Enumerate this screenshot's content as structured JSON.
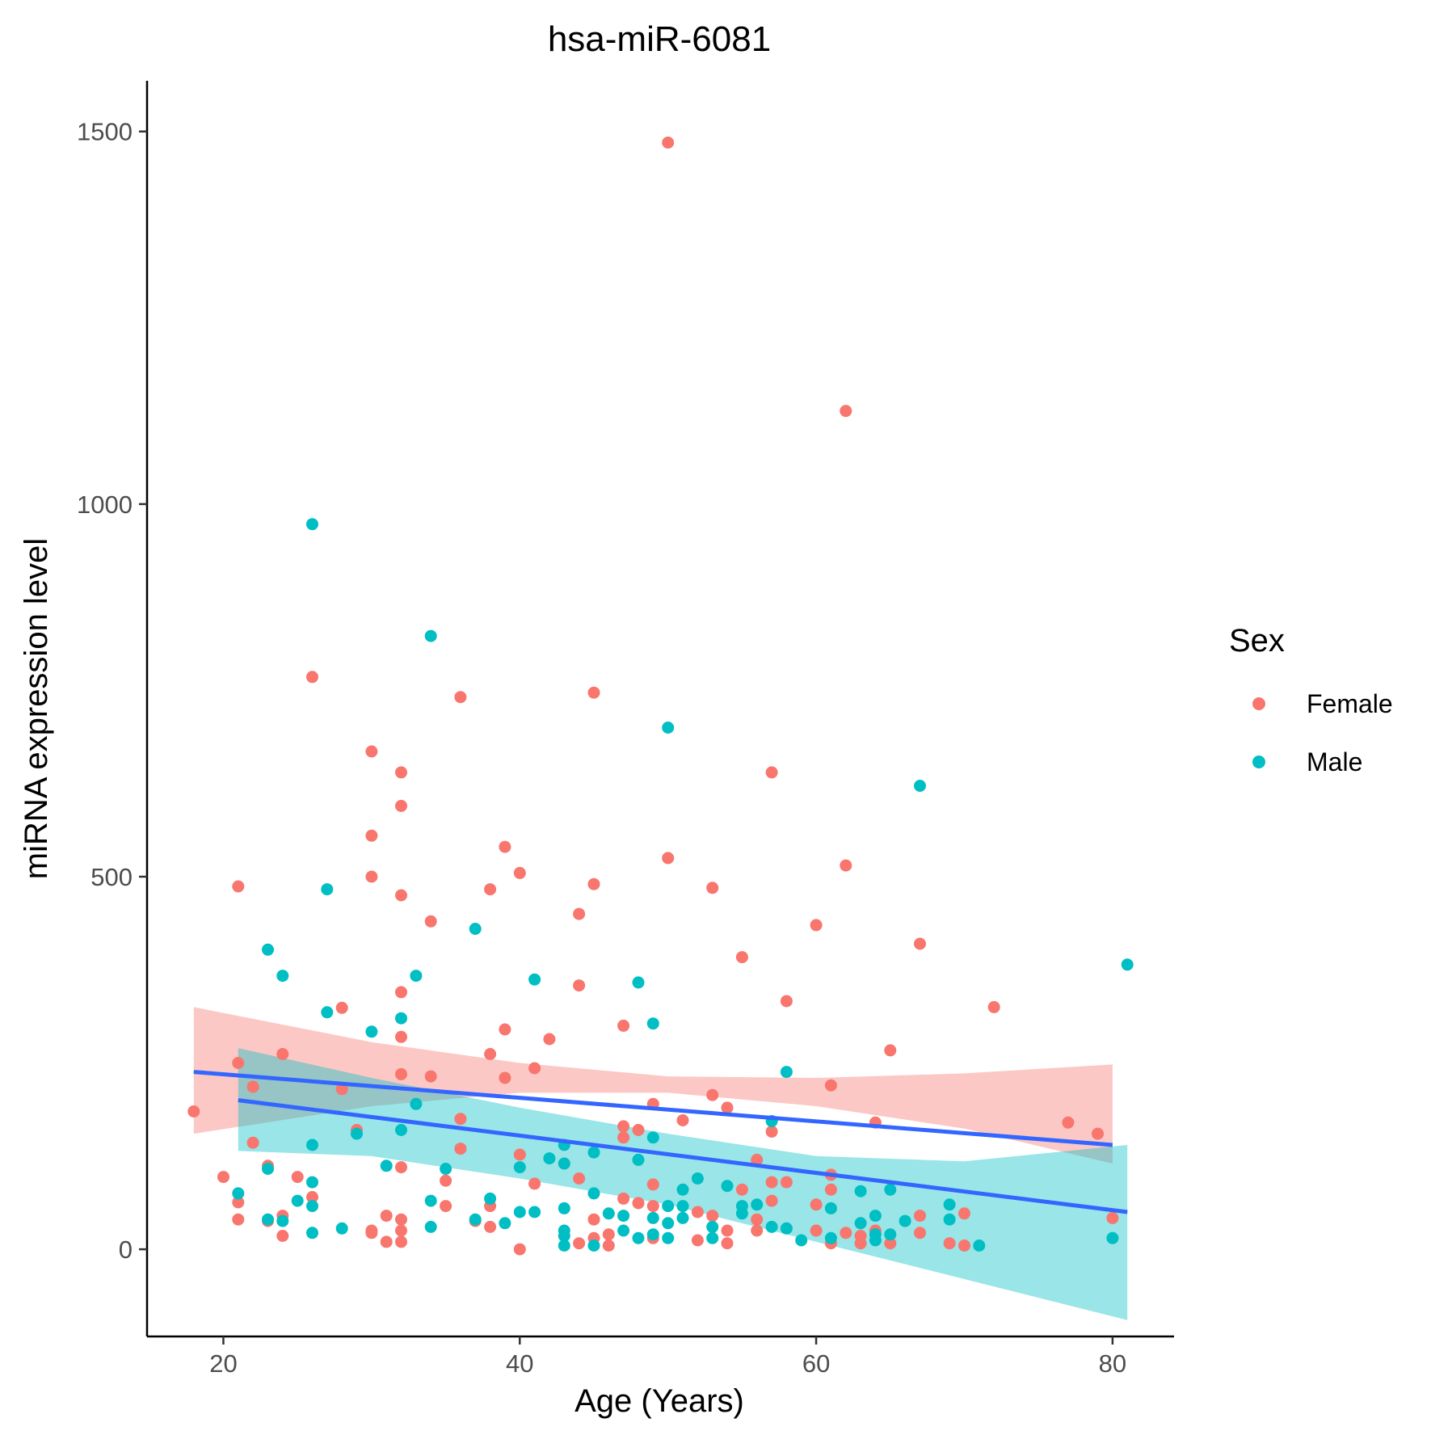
{
  "chart_data": {
    "type": "scatter",
    "title": "hsa-miR-6081",
    "xlabel": "Age (Years)",
    "ylabel": "miRNA expression level",
    "xlim": [
      14.85,
      84.15
    ],
    "ylim": [
      -117,
      1568
    ],
    "x_ticks": [
      20,
      40,
      60,
      80
    ],
    "y_ticks": [
      0,
      500,
      1000,
      1500
    ],
    "grid": false,
    "legend": {
      "title": "Sex",
      "position": "right",
      "entries": [
        {
          "label": "Female",
          "color": "#F8766D"
        },
        {
          "label": "Male",
          "color": "#00BFC4"
        }
      ]
    },
    "series": [
      {
        "name": "Female",
        "color": "#F8766D",
        "ribbon_color": "#F8766D",
        "points": [
          [
            18,
            185
          ],
          [
            20,
            97
          ],
          [
            21,
            487
          ],
          [
            21,
            250
          ],
          [
            21,
            63
          ],
          [
            21,
            40
          ],
          [
            22,
            218
          ],
          [
            22,
            143
          ],
          [
            23,
            112
          ],
          [
            23,
            38
          ],
          [
            24,
            262
          ],
          [
            24,
            45
          ],
          [
            24,
            18
          ],
          [
            25,
            97
          ],
          [
            26,
            768
          ],
          [
            26,
            70
          ],
          [
            28,
            324
          ],
          [
            28,
            215
          ],
          [
            29,
            160
          ],
          [
            30,
            668
          ],
          [
            30,
            555
          ],
          [
            30,
            500
          ],
          [
            30,
            25
          ],
          [
            30,
            22
          ],
          [
            31,
            45
          ],
          [
            31,
            10
          ],
          [
            32,
            640
          ],
          [
            32,
            595
          ],
          [
            32,
            475
          ],
          [
            32,
            345
          ],
          [
            32,
            285
          ],
          [
            32,
            235
          ],
          [
            32,
            110
          ],
          [
            32,
            40
          ],
          [
            32,
            25
          ],
          [
            32,
            10
          ],
          [
            34,
            440
          ],
          [
            34,
            232
          ],
          [
            35,
            92
          ],
          [
            35,
            58
          ],
          [
            36,
            741
          ],
          [
            36,
            175
          ],
          [
            36,
            135
          ],
          [
            37,
            38
          ],
          [
            38,
            483
          ],
          [
            38,
            262
          ],
          [
            38,
            58
          ],
          [
            38,
            30
          ],
          [
            39,
            540
          ],
          [
            39,
            295
          ],
          [
            39,
            230
          ],
          [
            40,
            505
          ],
          [
            40,
            0
          ],
          [
            40,
            127
          ],
          [
            41,
            243
          ],
          [
            41,
            88
          ],
          [
            42,
            282
          ],
          [
            43,
            115
          ],
          [
            44,
            450
          ],
          [
            44,
            354
          ],
          [
            44,
            95
          ],
          [
            44,
            8
          ],
          [
            45,
            747
          ],
          [
            45,
            490
          ],
          [
            45,
            40
          ],
          [
            45,
            15
          ],
          [
            46,
            20
          ],
          [
            46,
            5
          ],
          [
            47,
            300
          ],
          [
            47,
            165
          ],
          [
            47,
            150
          ],
          [
            47,
            68
          ],
          [
            48,
            160
          ],
          [
            48,
            62
          ],
          [
            49,
            195
          ],
          [
            49,
            87
          ],
          [
            49,
            58
          ],
          [
            49,
            15
          ],
          [
            50,
            1485
          ],
          [
            50,
            525
          ],
          [
            51,
            173
          ],
          [
            52,
            50
          ],
          [
            52,
            12
          ],
          [
            53,
            485
          ],
          [
            53,
            207
          ],
          [
            53,
            45
          ],
          [
            54,
            190
          ],
          [
            54,
            25
          ],
          [
            54,
            8
          ],
          [
            55,
            392
          ],
          [
            55,
            80
          ],
          [
            56,
            120
          ],
          [
            56,
            40
          ],
          [
            56,
            25
          ],
          [
            57,
            640
          ],
          [
            57,
            158
          ],
          [
            57,
            90
          ],
          [
            57,
            65
          ],
          [
            58,
            333
          ],
          [
            58,
            90
          ],
          [
            60,
            435
          ],
          [
            60,
            60
          ],
          [
            60,
            25
          ],
          [
            61,
            220
          ],
          [
            61,
            100
          ],
          [
            61,
            80
          ],
          [
            61,
            8
          ],
          [
            62,
            1125
          ],
          [
            62,
            515
          ],
          [
            62,
            22
          ],
          [
            63,
            18
          ],
          [
            63,
            8
          ],
          [
            64,
            170
          ],
          [
            64,
            25
          ],
          [
            65,
            267
          ],
          [
            65,
            8
          ],
          [
            67,
            410
          ],
          [
            67,
            45
          ],
          [
            67,
            22
          ],
          [
            69,
            8
          ],
          [
            70,
            48
          ],
          [
            70,
            5
          ],
          [
            72,
            325
          ],
          [
            77,
            170
          ],
          [
            79,
            155
          ],
          [
            80,
            42
          ]
        ],
        "fit": {
          "x_range": [
            18,
            80
          ],
          "y_at_start": 238,
          "y_at_end": 140
        },
        "ci_lower": [
          [
            18,
            155
          ],
          [
            30,
            192
          ],
          [
            40,
            210
          ],
          [
            50,
            210
          ],
          [
            60,
            192
          ],
          [
            70,
            162
          ],
          [
            80,
            115
          ]
        ],
        "ci_upper": [
          [
            18,
            325
          ],
          [
            30,
            278
          ],
          [
            40,
            250
          ],
          [
            50,
            232
          ],
          [
            60,
            230
          ],
          [
            70,
            236
          ],
          [
            80,
            248
          ]
        ]
      },
      {
        "name": "Male",
        "color": "#00BFC4",
        "ribbon_color": "#00BFC4",
        "points": [
          [
            21,
            75
          ],
          [
            23,
            402
          ],
          [
            23,
            108
          ],
          [
            23,
            40
          ],
          [
            24,
            367
          ],
          [
            24,
            38
          ],
          [
            25,
            65
          ],
          [
            26,
            973
          ],
          [
            26,
            140
          ],
          [
            26,
            90
          ],
          [
            26,
            58
          ],
          [
            26,
            22
          ],
          [
            27,
            483
          ],
          [
            27,
            318
          ],
          [
            28,
            28
          ],
          [
            29,
            155
          ],
          [
            30,
            292
          ],
          [
            31,
            112
          ],
          [
            32,
            310
          ],
          [
            32,
            160
          ],
          [
            33,
            367
          ],
          [
            33,
            195
          ],
          [
            34,
            823
          ],
          [
            34,
            65
          ],
          [
            34,
            30
          ],
          [
            35,
            108
          ],
          [
            37,
            430
          ],
          [
            37,
            40
          ],
          [
            38,
            68
          ],
          [
            39,
            35
          ],
          [
            40,
            110
          ],
          [
            40,
            50
          ],
          [
            41,
            362
          ],
          [
            41,
            50
          ],
          [
            42,
            122
          ],
          [
            43,
            115
          ],
          [
            43,
            55
          ],
          [
            43,
            25
          ],
          [
            43,
            18
          ],
          [
            43,
            5
          ],
          [
            43,
            140
          ],
          [
            45,
            75
          ],
          [
            45,
            5
          ],
          [
            45,
            130
          ],
          [
            46,
            48
          ],
          [
            47,
            45
          ],
          [
            47,
            25
          ],
          [
            48,
            358
          ],
          [
            48,
            120
          ],
          [
            48,
            15
          ],
          [
            49,
            303
          ],
          [
            49,
            150
          ],
          [
            49,
            42
          ],
          [
            49,
            20
          ],
          [
            50,
            700
          ],
          [
            50,
            58
          ],
          [
            50,
            35
          ],
          [
            50,
            15
          ],
          [
            51,
            80
          ],
          [
            51,
            58
          ],
          [
            51,
            42
          ],
          [
            52,
            95
          ],
          [
            53,
            30
          ],
          [
            53,
            15
          ],
          [
            54,
            85
          ],
          [
            55,
            58
          ],
          [
            55,
            48
          ],
          [
            56,
            60
          ],
          [
            57,
            172
          ],
          [
            57,
            30
          ],
          [
            58,
            238
          ],
          [
            58,
            28
          ],
          [
            59,
            12
          ],
          [
            61,
            55
          ],
          [
            61,
            15
          ],
          [
            63,
            78
          ],
          [
            63,
            35
          ],
          [
            64,
            45
          ],
          [
            64,
            20
          ],
          [
            64,
            12
          ],
          [
            65,
            80
          ],
          [
            65,
            20
          ],
          [
            66,
            38
          ],
          [
            67,
            622
          ],
          [
            69,
            60
          ],
          [
            69,
            40
          ],
          [
            71,
            5
          ],
          [
            80,
            15
          ],
          [
            81,
            382
          ]
        ],
        "fit": {
          "x_range": [
            21,
            81
          ],
          "y_at_start": 200,
          "y_at_end": 50
        },
        "ci_lower": [
          [
            21,
            132
          ],
          [
            30,
            125
          ],
          [
            40,
            95
          ],
          [
            50,
            60
          ],
          [
            60,
            10
          ],
          [
            70,
            -40
          ],
          [
            81,
            -95
          ]
        ],
        "ci_upper": [
          [
            21,
            270
          ],
          [
            30,
            230
          ],
          [
            40,
            190
          ],
          [
            50,
            155
          ],
          [
            60,
            125
          ],
          [
            70,
            118
          ],
          [
            81,
            140
          ]
        ]
      }
    ],
    "fit_line_color": "#3366FF"
  }
}
